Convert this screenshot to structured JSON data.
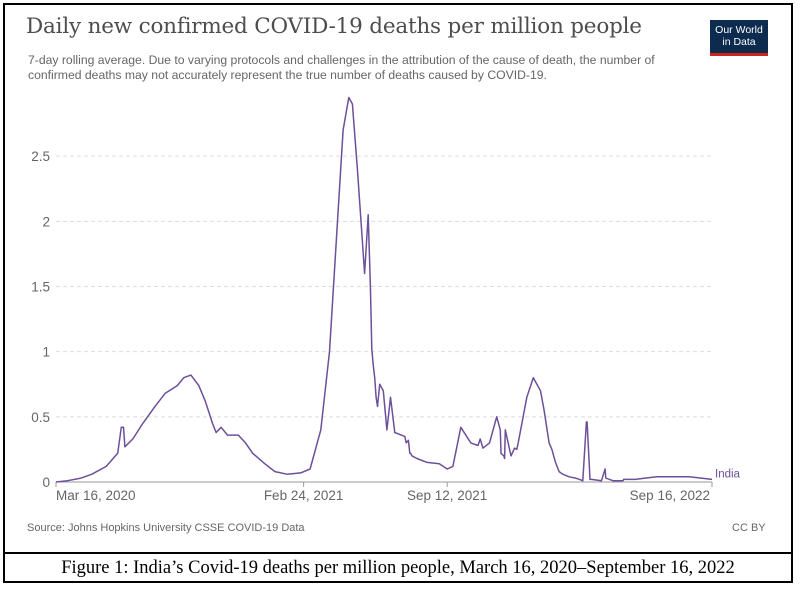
{
  "title": "Daily new confirmed COVID-19 deaths per million people",
  "subtitle": "7-day rolling average. Due to varying protocols and challenges in the attribution of the cause of death, the number of confirmed deaths may not accurately represent the true number of deaths caused by COVID-19.",
  "logo": {
    "line1": "Our World",
    "line2": "in Data"
  },
  "source": "Source: Johns Hopkins University CSSE COVID-19 Data",
  "license": "CC BY",
  "caption": "Figure 1: India’s Covid-19 deaths per million people, March 16, 2020–September 16, 2022",
  "colors": {
    "line": "#6d4f9a",
    "grid": "#dddddd",
    "axis_text": "#666666",
    "logo_bg": "#0d2a4f",
    "logo_accent": "#ce261e"
  },
  "chart_data": {
    "type": "line",
    "x_start": "2020-03-16",
    "x_end": "2022-09-16",
    "xticks": [
      "Mar 16, 2020",
      "Feb 24, 2021",
      "Sep 12, 2021",
      "Sep 16, 2022"
    ],
    "ylim": [
      0,
      3
    ],
    "yticks": [
      0,
      0.5,
      1,
      1.5,
      2,
      2.5
    ],
    "ytick_labels": [
      "0",
      "0.5",
      "1",
      "1.5",
      "2",
      "2.5"
    ],
    "grid": "horizontal dashed",
    "series": [
      {
        "name": "India",
        "x": [
          "2020-03-16",
          "2020-04-01",
          "2020-04-20",
          "2020-05-05",
          "2020-05-25",
          "2020-06-10",
          "2020-06-15",
          "2020-06-18",
          "2020-06-20",
          "2020-07-01",
          "2020-07-15",
          "2020-08-01",
          "2020-08-15",
          "2020-09-01",
          "2020-09-10",
          "2020-09-20",
          "2020-10-01",
          "2020-10-10",
          "2020-10-20",
          "2020-10-25",
          "2020-11-01",
          "2020-11-10",
          "2020-11-25",
          "2020-12-05",
          "2020-12-15",
          "2021-01-01",
          "2021-01-15",
          "2021-02-01",
          "2021-02-20",
          "2021-03-05",
          "2021-03-20",
          "2021-04-01",
          "2021-04-10",
          "2021-04-20",
          "2021-04-28",
          "2021-05-03",
          "2021-05-10",
          "2021-05-15",
          "2021-05-20",
          "2021-05-25",
          "2021-05-28",
          "2021-05-30",
          "2021-06-01",
          "2021-06-03",
          "2021-06-05",
          "2021-06-07",
          "2021-06-10",
          "2021-06-15",
          "2021-06-20",
          "2021-06-25",
          "2021-07-01",
          "2021-07-10",
          "2021-07-15",
          "2021-07-17",
          "2021-07-20",
          "2021-07-22",
          "2021-07-23",
          "2021-07-25",
          "2021-08-01",
          "2021-08-15",
          "2021-09-01",
          "2021-09-12",
          "2021-09-20",
          "2021-10-01",
          "2021-10-15",
          "2021-10-25",
          "2021-10-28",
          "2021-11-01",
          "2021-11-10",
          "2021-11-20",
          "2021-11-25",
          "2021-11-26",
          "2021-11-30",
          "2021-12-01",
          "2021-12-02",
          "2021-12-10",
          "2021-12-15",
          "2021-12-18",
          "2021-12-20",
          "2022-01-01",
          "2022-01-10",
          "2022-01-20",
          "2022-01-25",
          "2022-02-01",
          "2022-02-05",
          "2022-02-10",
          "2022-02-15",
          "2022-02-20",
          "2022-03-01",
          "2022-03-10",
          "2022-03-20",
          "2022-03-25",
          "2022-03-26",
          "2022-03-30",
          "2022-04-01",
          "2022-04-15",
          "2022-04-20",
          "2022-04-21",
          "2022-05-01",
          "2022-05-15",
          "2022-05-16",
          "2022-06-01",
          "2022-06-15",
          "2022-07-01",
          "2022-07-15",
          "2022-08-01",
          "2022-08-15",
          "2022-09-01",
          "2022-09-16"
        ],
        "values": [
          0,
          0.01,
          0.03,
          0.06,
          0.12,
          0.22,
          0.42,
          0.42,
          0.27,
          0.33,
          0.45,
          0.58,
          0.68,
          0.74,
          0.8,
          0.82,
          0.74,
          0.62,
          0.45,
          0.38,
          0.42,
          0.36,
          0.36,
          0.3,
          0.22,
          0.14,
          0.08,
          0.06,
          0.07,
          0.1,
          0.4,
          1.0,
          1.8,
          2.7,
          2.95,
          2.9,
          2.4,
          2.0,
          1.6,
          2.05,
          1.5,
          1.02,
          0.9,
          0.8,
          0.65,
          0.58,
          0.75,
          0.7,
          0.4,
          0.65,
          0.38,
          0.36,
          0.35,
          0.3,
          0.32,
          0.22,
          0.22,
          0.2,
          0.18,
          0.15,
          0.14,
          0.1,
          0.12,
          0.42,
          0.3,
          0.28,
          0.33,
          0.26,
          0.3,
          0.5,
          0.4,
          0.22,
          0.2,
          0.18,
          0.4,
          0.2,
          0.26,
          0.25,
          0.3,
          0.65,
          0.8,
          0.7,
          0.55,
          0.3,
          0.25,
          0.15,
          0.08,
          0.06,
          0.04,
          0.03,
          0.01,
          0.46,
          0.46,
          0.02,
          0.02,
          0.01,
          0.1,
          0.03,
          0.01,
          0.01,
          0.02,
          0.02,
          0.03,
          0.04,
          0.04,
          0.04,
          0.04,
          0.03,
          0.02
        ]
      }
    ]
  }
}
